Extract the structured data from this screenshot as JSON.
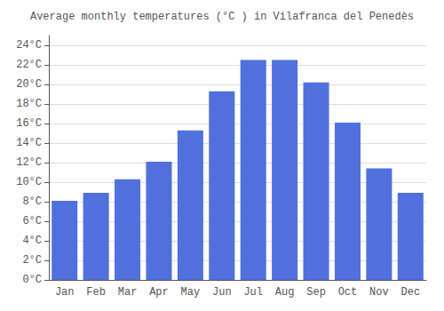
{
  "chart_data": {
    "type": "bar",
    "title": "Average monthly temperatures (°C ) in Vilafranca del Penedès",
    "categories": [
      "Jan",
      "Feb",
      "Mar",
      "Apr",
      "May",
      "Jun",
      "Jul",
      "Aug",
      "Sep",
      "Oct",
      "Nov",
      "Dec"
    ],
    "values": [
      8.1,
      8.9,
      10.3,
      12.1,
      15.3,
      19.3,
      22.5,
      22.5,
      20.2,
      16.1,
      11.4,
      8.9
    ],
    "ylim": [
      0,
      25
    ],
    "yticks": [
      {
        "value": 0,
        "label": "0°C"
      },
      {
        "value": 2,
        "label": "2°C"
      },
      {
        "value": 4,
        "label": "4°C"
      },
      {
        "value": 6,
        "label": "6°C"
      },
      {
        "value": 8,
        "label": "8°C"
      },
      {
        "value": 10,
        "label": "10°C"
      },
      {
        "value": 12,
        "label": "12°C"
      },
      {
        "value": 14,
        "label": "14°C"
      },
      {
        "value": 16,
        "label": "16°C"
      },
      {
        "value": 18,
        "label": "18°C"
      },
      {
        "value": 20,
        "label": "20°C"
      },
      {
        "value": 22,
        "label": "22°C"
      },
      {
        "value": 24,
        "label": "24°C"
      }
    ],
    "grid": true
  }
}
